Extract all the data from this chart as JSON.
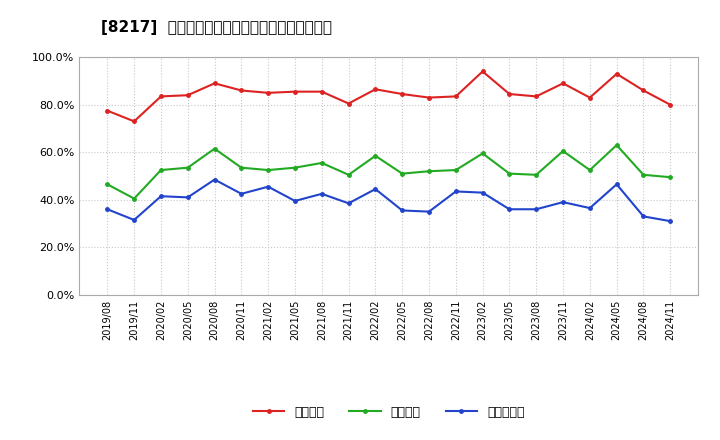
{
  "title": "[8217]  流動比率、当座比率、現預金比率の推移",
  "x_labels": [
    "2019/08",
    "2019/11",
    "2020/02",
    "2020/05",
    "2020/08",
    "2020/11",
    "2021/02",
    "2021/05",
    "2021/08",
    "2021/11",
    "2022/02",
    "2022/05",
    "2022/08",
    "2022/11",
    "2023/02",
    "2023/05",
    "2023/08",
    "2023/11",
    "2024/02",
    "2024/05",
    "2024/08",
    "2024/11"
  ],
  "ryudo": [
    77.5,
    73.0,
    83.5,
    84.0,
    89.0,
    86.0,
    85.0,
    85.5,
    85.5,
    80.5,
    86.5,
    84.5,
    83.0,
    83.5,
    94.0,
    84.5,
    83.5,
    89.0,
    83.0,
    93.0,
    86.0,
    80.0
  ],
  "toza": [
    46.5,
    40.5,
    52.5,
    53.5,
    61.5,
    53.5,
    52.5,
    53.5,
    55.5,
    50.5,
    58.5,
    51.0,
    52.0,
    52.5,
    59.5,
    51.0,
    50.5,
    60.5,
    52.5,
    63.0,
    50.5,
    49.5
  ],
  "genkin": [
    36.0,
    31.5,
    41.5,
    41.0,
    48.5,
    42.5,
    45.5,
    39.5,
    42.5,
    38.5,
    44.5,
    35.5,
    35.0,
    43.5,
    43.0,
    36.0,
    36.0,
    39.0,
    36.5,
    46.5,
    33.0,
    31.0
  ],
  "ryudo_color": "#dd2222",
  "toza_color": "#22aa22",
  "genkin_color": "#2244cc",
  "bg_color": "#ffffff",
  "plot_bg_color": "#ffffff",
  "grid_color": "#c8c8c8",
  "ylim": [
    0,
    100
  ],
  "yticks": [
    0,
    20,
    40,
    60,
    80,
    100
  ],
  "legend_label0": "流動比率",
  "legend_label1": "当座比率",
  "legend_label2": "現預金比率"
}
